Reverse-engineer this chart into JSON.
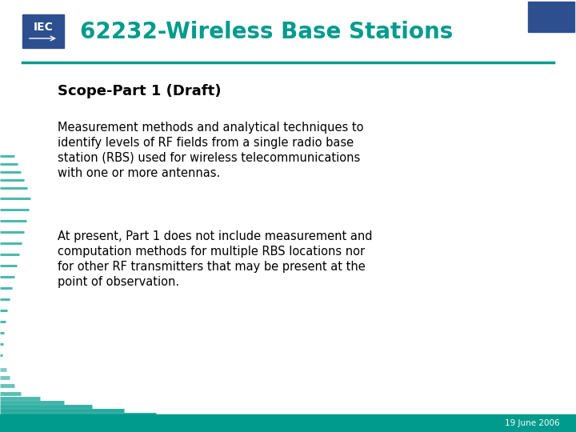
{
  "title": "62232-Wireless Base Stations",
  "title_color": "#009B8D",
  "subtitle": "Scope-Part 1 (Draft)",
  "para1_lines": [
    "Measurement methods and analytical techniques to",
    "identify levels of RF fields from a single radio base",
    "station (RBS) used for wireless telecommunications",
    "with one or more antennas."
  ],
  "para2_lines": [
    "At present, Part 1 does not include measurement and",
    "computation methods for multiple RBS locations nor",
    "for other RF transmitters that may be present at the",
    "point of observation."
  ],
  "footer_text": "19 June 2006",
  "bg_color": "#ffffff",
  "header_line_color": "#009B8D",
  "footer_bg_color": "#009B8D",
  "footer_text_color": "#ffffff",
  "blue_rect_color": "#2E4F8F",
  "iec_bg_color": "#2E4F8F",
  "teal_color": "#009B8D",
  "body_text_color": "#000000",
  "subtitle_color": "#000000"
}
